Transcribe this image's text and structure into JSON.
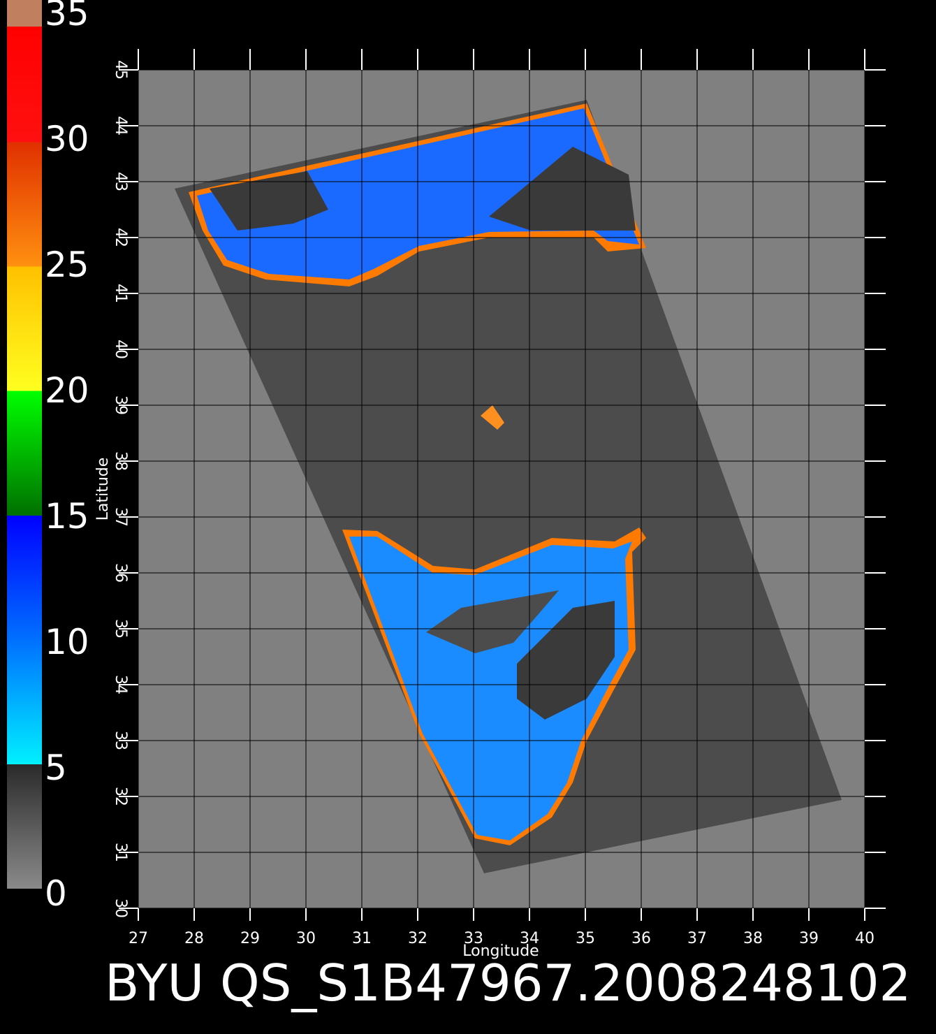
{
  "colorbar": {
    "lim": [
      0,
      35
    ],
    "ticks": [
      0,
      5,
      10,
      15,
      20,
      25,
      30,
      35
    ]
  },
  "map": {
    "xlabel": "Longitude",
    "ylabel": "Latitude",
    "xlim": [
      27,
      40
    ],
    "ylim": [
      30,
      45
    ],
    "xticks": [
      27,
      28,
      29,
      30,
      31,
      32,
      33,
      34,
      35,
      36,
      37,
      38,
      39,
      40
    ],
    "yticks": [
      30,
      31,
      32,
      33,
      34,
      35,
      36,
      37,
      38,
      39,
      40,
      41,
      42,
      43,
      44,
      45
    ],
    "grid": true
  },
  "title": "BYU QS_S1B47967.2008248102"
}
